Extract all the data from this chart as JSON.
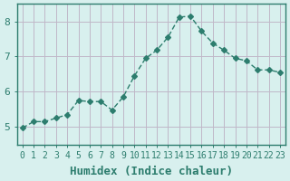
{
  "x": [
    0,
    1,
    2,
    3,
    4,
    5,
    6,
    7,
    8,
    9,
    10,
    11,
    12,
    13,
    14,
    15,
    16,
    17,
    18,
    19,
    20,
    21,
    22,
    23
  ],
  "y": [
    4.97,
    5.15,
    5.15,
    5.25,
    5.35,
    5.75,
    5.72,
    5.72,
    5.48,
    5.85,
    6.45,
    6.95,
    7.18,
    7.55,
    8.12,
    8.15,
    7.72,
    7.38,
    7.18,
    6.95,
    6.88,
    6.62,
    6.62,
    6.55
  ],
  "line_color": "#2d7d6e",
  "marker": "D",
  "marker_size": 3,
  "bg_color": "#d8f0ee",
  "grid_color": "#c0b8c8",
  "axis_color": "#2d7d6e",
  "xlabel": "Humidex (Indice chaleur)",
  "xlabel_fontsize": 9,
  "ylim": [
    4.5,
    8.5
  ],
  "xlim": [
    -0.5,
    23.5
  ],
  "yticks": [
    5,
    6,
    7,
    8
  ],
  "xticks": [
    0,
    1,
    2,
    3,
    4,
    5,
    6,
    7,
    8,
    9,
    10,
    11,
    12,
    13,
    14,
    15,
    16,
    17,
    18,
    19,
    20,
    21,
    22,
    23
  ],
  "tick_fontsize": 7
}
